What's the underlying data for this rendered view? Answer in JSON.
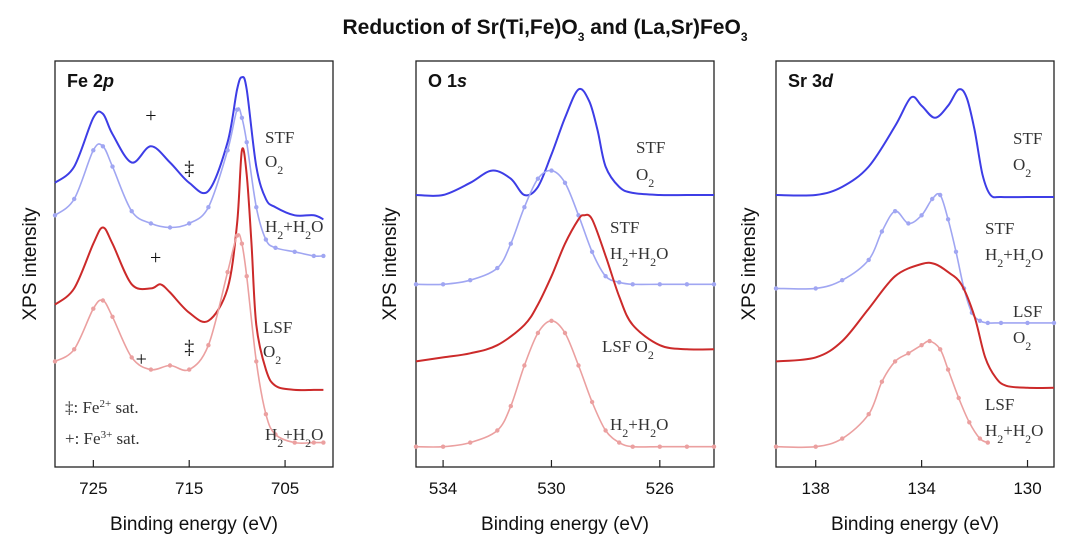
{
  "title": "Reduction of Sr(Ti,Fe)O3 and (La,Sr)FeO3",
  "chart_data": [
    {
      "type": "line",
      "panel_title": "Fe 2p",
      "xlabel": "Binding energy (eV)",
      "ylabel": "XPS intensity",
      "xlim": [
        729,
        700
      ],
      "xticks": [
        725,
        715,
        705
      ],
      "series": [
        {
          "name": "STF O2",
          "color": "#3d3de6",
          "label": [
            "STF",
            "O2"
          ],
          "x": [
            729,
            727,
            725,
            724,
            723,
            721,
            719,
            717,
            715,
            713,
            711,
            710,
            709.5,
            709,
            708,
            707,
            706,
            704,
            702,
            701
          ],
          "y": [
            0.7,
            0.74,
            0.86,
            0.87,
            0.82,
            0.75,
            0.79,
            0.75,
            0.7,
            0.68,
            0.8,
            0.93,
            0.96,
            0.93,
            0.74,
            0.66,
            0.64,
            0.62,
            0.62,
            0.61
          ]
        },
        {
          "name": "STF H2+H2O",
          "color": "#a0a6f2",
          "label": [
            "H2+H2O"
          ],
          "x": [
            729,
            727,
            725,
            724,
            723,
            721,
            719,
            717,
            715,
            713,
            711,
            710,
            709.5,
            709,
            708,
            707,
            706,
            704,
            702,
            701
          ],
          "y": [
            0.62,
            0.66,
            0.78,
            0.79,
            0.74,
            0.63,
            0.6,
            0.59,
            0.6,
            0.64,
            0.78,
            0.88,
            0.86,
            0.8,
            0.64,
            0.56,
            0.54,
            0.53,
            0.52,
            0.52
          ]
        },
        {
          "name": "LSF O2",
          "color": "#cc2a2a",
          "label": [
            "LSF",
            "O2"
          ],
          "x": [
            729,
            727,
            725,
            724,
            723,
            721,
            719,
            718,
            717,
            715,
            713,
            711,
            710,
            709.5,
            709,
            708.5,
            708,
            707,
            706,
            704,
            702,
            701
          ],
          "y": [
            0.4,
            0.44,
            0.55,
            0.59,
            0.55,
            0.45,
            0.44,
            0.45,
            0.43,
            0.38,
            0.36,
            0.44,
            0.6,
            0.78,
            0.72,
            0.55,
            0.35,
            0.24,
            0.2,
            0.19,
            0.19,
            0.19
          ]
        },
        {
          "name": "LSF H2+H2O",
          "color": "#eba0a0",
          "label": [
            "H2+H2O"
          ],
          "x": [
            729,
            727,
            725,
            724,
            723,
            721,
            719,
            717,
            715,
            713,
            711,
            710,
            709.5,
            709,
            708,
            707,
            706,
            704,
            702,
            701
          ],
          "y": [
            0.26,
            0.29,
            0.39,
            0.41,
            0.37,
            0.27,
            0.24,
            0.25,
            0.24,
            0.3,
            0.48,
            0.57,
            0.55,
            0.47,
            0.26,
            0.13,
            0.08,
            0.06,
            0.06,
            0.06
          ]
        }
      ],
      "annotations": [
        {
          "text": "+",
          "x": 719,
          "y": 0.85
        },
        {
          "text": "‡",
          "x": 715,
          "y": 0.72
        },
        {
          "text": "+",
          "x": 718.5,
          "y": 0.5
        },
        {
          "text": "+",
          "x": 720,
          "y": 0.25
        },
        {
          "text": "‡",
          "x": 715,
          "y": 0.28
        }
      ],
      "legend": {
        "fe2": "‡: Fe2+ sat.",
        "fe3": "+: Fe3+ sat."
      }
    },
    {
      "type": "line",
      "panel_title": "O 1s",
      "xlabel": "Binding energy (eV)",
      "ylabel": "XPS intensity",
      "xlim": [
        535,
        524
      ],
      "xticks": [
        534,
        530,
        526
      ],
      "series": [
        {
          "name": "STF O2",
          "color": "#3d3de6",
          "label": [
            "STF",
            "O2"
          ],
          "x": [
            535,
            534,
            533,
            532.2,
            531.5,
            531,
            530.5,
            530,
            529.5,
            529,
            528.6,
            528.3,
            528,
            527.5,
            527,
            526,
            525,
            524
          ],
          "y": [
            0.67,
            0.67,
            0.7,
            0.73,
            0.71,
            0.67,
            0.69,
            0.77,
            0.86,
            0.93,
            0.9,
            0.83,
            0.74,
            0.69,
            0.675,
            0.67,
            0.67,
            0.67
          ]
        },
        {
          "name": "STF H2+H2O",
          "color": "#a0a6f2",
          "label": [
            "STF",
            "H2+H2O"
          ],
          "x": [
            535,
            534,
            533,
            532,
            531.5,
            531,
            530.5,
            530,
            529.5,
            529,
            528.5,
            528,
            527.5,
            527,
            526,
            525,
            524
          ],
          "y": [
            0.45,
            0.45,
            0.46,
            0.49,
            0.55,
            0.64,
            0.71,
            0.73,
            0.7,
            0.62,
            0.53,
            0.47,
            0.455,
            0.45,
            0.45,
            0.45,
            0.45
          ]
        },
        {
          "name": "LSF O2",
          "color": "#cc2a2a",
          "label": [
            "LSF O2"
          ],
          "x": [
            535,
            534,
            533,
            532,
            531,
            530.5,
            530,
            529.5,
            529,
            528.8,
            528.5,
            528,
            527.5,
            527,
            526,
            525,
            524
          ],
          "y": [
            0.26,
            0.27,
            0.28,
            0.3,
            0.35,
            0.4,
            0.47,
            0.55,
            0.61,
            0.62,
            0.61,
            0.52,
            0.42,
            0.35,
            0.3,
            0.29,
            0.29
          ]
        },
        {
          "name": "LSF H2+H2O",
          "color": "#eba0a0",
          "label": [
            "H2+H2O"
          ],
          "x": [
            535,
            534,
            533,
            532,
            531.5,
            531,
            530.5,
            530,
            529.5,
            529,
            528.5,
            528,
            527.5,
            527,
            526,
            525,
            524
          ],
          "y": [
            0.05,
            0.05,
            0.06,
            0.09,
            0.15,
            0.25,
            0.33,
            0.36,
            0.33,
            0.25,
            0.16,
            0.09,
            0.06,
            0.05,
            0.05,
            0.05,
            0.05
          ]
        }
      ]
    },
    {
      "type": "line",
      "panel_title": "Sr 3d",
      "xlabel": "Binding energy (eV)",
      "ylabel": "XPS intensity",
      "xlim": [
        139.5,
        129
      ],
      "xticks": [
        138,
        134,
        130
      ],
      "series": [
        {
          "name": "STF O2",
          "color": "#3d3de6",
          "label": [
            "STF",
            "O2"
          ],
          "x": [
            139.5,
            138,
            137,
            136,
            135,
            134.4,
            134,
            133.5,
            133,
            132.6,
            132.3,
            132,
            131.7,
            131.4,
            131,
            130,
            129
          ],
          "y": [
            0.67,
            0.67,
            0.69,
            0.74,
            0.84,
            0.91,
            0.89,
            0.86,
            0.89,
            0.93,
            0.91,
            0.83,
            0.72,
            0.67,
            0.665,
            0.665,
            0.665
          ]
        },
        {
          "name": "STF H2+H2O",
          "color": "#a0a6f2",
          "label": [
            "STF",
            "H2+H2O"
          ],
          "x": [
            139.5,
            138,
            137,
            136,
            135.5,
            135,
            134.5,
            134,
            133.6,
            133.3,
            133,
            132.7,
            132.4,
            132.1,
            131.8,
            131.5,
            131,
            130,
            129
          ],
          "y": [
            0.44,
            0.44,
            0.46,
            0.51,
            0.58,
            0.63,
            0.6,
            0.62,
            0.66,
            0.67,
            0.61,
            0.53,
            0.44,
            0.38,
            0.36,
            0.355,
            0.355,
            0.355,
            0.355
          ]
        },
        {
          "name": "LSF O2",
          "color": "#cc2a2a",
          "label": [
            "LSF",
            "O2"
          ],
          "x": [
            139.5,
            138,
            137,
            136,
            135,
            134,
            133.5,
            133,
            132.5,
            132,
            131.6,
            131.2,
            130.8,
            130,
            129
          ],
          "y": [
            0.26,
            0.27,
            0.31,
            0.39,
            0.47,
            0.5,
            0.5,
            0.48,
            0.45,
            0.37,
            0.27,
            0.22,
            0.2,
            0.195,
            0.195
          ]
        },
        {
          "name": "LSF H2+H2O",
          "color": "#eba0a0",
          "label": [
            "LSF",
            "H2+H2O"
          ],
          "x": [
            139.5,
            138,
            137,
            136,
            135.5,
            135,
            134.5,
            134,
            133.7,
            133.3,
            133,
            132.6,
            132.2,
            131.8,
            131.5
          ],
          "y": [
            0.05,
            0.05,
            0.07,
            0.13,
            0.21,
            0.26,
            0.28,
            0.3,
            0.31,
            0.29,
            0.24,
            0.17,
            0.11,
            0.07,
            0.06
          ]
        }
      ]
    }
  ]
}
